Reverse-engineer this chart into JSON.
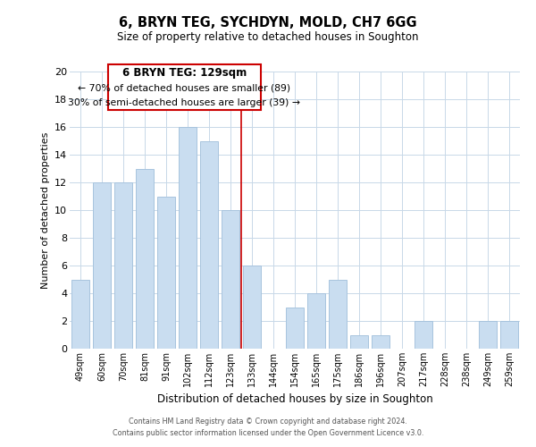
{
  "title": "6, BRYN TEG, SYCHDYN, MOLD, CH7 6GG",
  "subtitle": "Size of property relative to detached houses in Soughton",
  "xlabel": "Distribution of detached houses by size in Soughton",
  "ylabel": "Number of detached properties",
  "bar_labels": [
    "49sqm",
    "60sqm",
    "70sqm",
    "81sqm",
    "91sqm",
    "102sqm",
    "112sqm",
    "123sqm",
    "133sqm",
    "144sqm",
    "154sqm",
    "165sqm",
    "175sqm",
    "186sqm",
    "196sqm",
    "207sqm",
    "217sqm",
    "228sqm",
    "238sqm",
    "249sqm",
    "259sqm"
  ],
  "bar_values": [
    5,
    12,
    12,
    13,
    11,
    16,
    15,
    10,
    6,
    0,
    3,
    4,
    5,
    1,
    1,
    0,
    2,
    0,
    0,
    2,
    2
  ],
  "bar_color": "#c9ddf0",
  "bar_edge_color": "#a8c4de",
  "ylim": [
    0,
    20
  ],
  "yticks": [
    0,
    2,
    4,
    6,
    8,
    10,
    12,
    14,
    16,
    18,
    20
  ],
  "vline_color": "#cc0000",
  "annotation_title": "6 BRYN TEG: 129sqm",
  "annotation_line1": "← 70% of detached houses are smaller (89)",
  "annotation_line2": "30% of semi-detached houses are larger (39) →",
  "annotation_box_color": "#ffffff",
  "annotation_box_edge": "#cc0000",
  "footer_line1": "Contains HM Land Registry data © Crown copyright and database right 2024.",
  "footer_line2": "Contains public sector information licensed under the Open Government Licence v3.0.",
  "background_color": "#ffffff",
  "grid_color": "#c8d8e8"
}
